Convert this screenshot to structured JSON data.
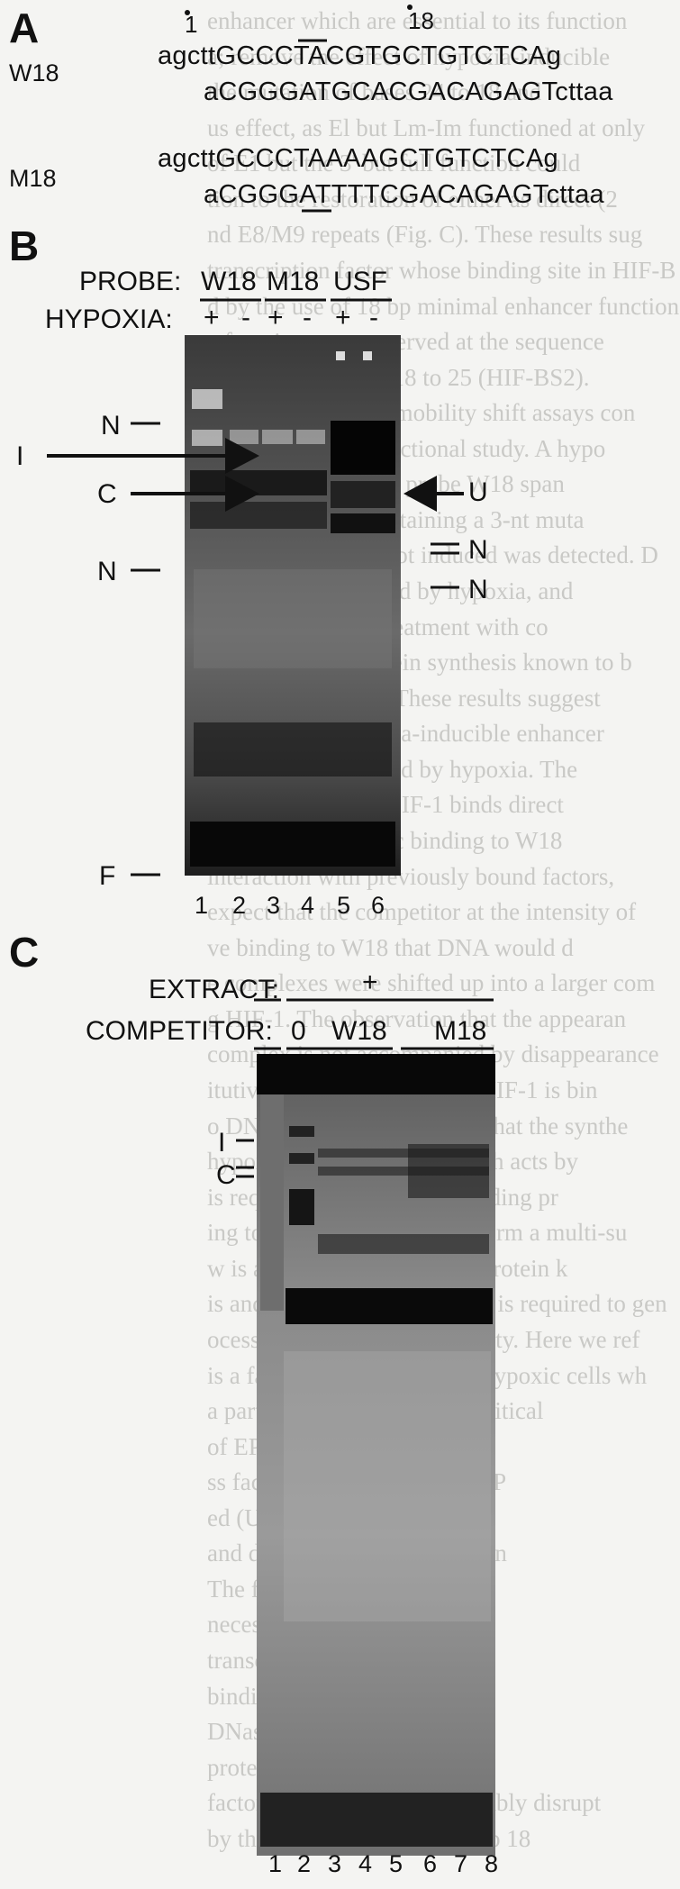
{
  "panelA": {
    "letter": "A",
    "marker_1": "1",
    "marker_18": "18",
    "probes": [
      {
        "name": "W18",
        "top_strand": "agcttGCCCTACGTGCTGTCTCAg",
        "bottom_strand": "aCGGGATGCACGACAGAGTcttaa"
      },
      {
        "name": "M18",
        "top_strand": "agcttGCCCTAAAAGCTGTCTCAg",
        "bottom_strand": "aCGGGATTTTCGACAGAGTcttaa"
      }
    ]
  },
  "panelB": {
    "letter": "B",
    "probe_label": "PROBE:",
    "probes": [
      "W18",
      "M18",
      "USF"
    ],
    "hypoxia_label": "HYPOXIA:",
    "hypoxia": [
      "+",
      "-",
      "+",
      "-",
      "+",
      "-"
    ],
    "left_labels": {
      "n_top": "N",
      "i": "I",
      "c": "C",
      "n_mid": "N",
      "f": "F"
    },
    "right_labels": {
      "u": "U",
      "n1": "N",
      "n2": "N"
    },
    "lanes": [
      "1",
      "2",
      "3",
      "4",
      "5",
      "6"
    ]
  },
  "panelC": {
    "letter": "C",
    "extract_label": "EXTRACT:",
    "extract_minus": "-",
    "extract_plus": "+",
    "competitor_label": "COMPETITOR:",
    "competitors": [
      "0",
      "W18",
      "M18"
    ],
    "left_labels": {
      "i": "I",
      "c": "C"
    },
    "lanes": [
      "1",
      "2",
      "3",
      "4",
      "5",
      "6",
      "7",
      "8"
    ]
  },
  "background_text": [
    "enhancer which are essential to its function",
    "a; remove the effect of hypoxia-inducible",
    "the mutation of bases 24 to 18 and",
    "us effect, as El but Lm-Im functioned at only",
    "of E1 but the 3' but full function could",
    "tion to the restoration of either as direct (2",
    "nd E8/M9 repeats (Fig. C). These results sug",
    "transcription factor whose binding site in HIF-B",
    "d by the use of 18 bp minimal enhancer function",
    "e function was preserved at the sequence",
    "(HIF-BS) residues 18 to 25 (HIF-BS2).",
    "btained from these mobility shift assays con",
    "he results of the functional study. A hypo",
    "d was detected with probe W18 span",
    "but not to M18, containing a 3-nt muta",
    "complex that was not induced was detected. D",
    "ctivity was increased by hypoxia, and",
    "was inducible by treatment with co",
    "an inhibitor of protein synthesis known to b",
    "of EPO RNA (10). These results suggest",
    "HIF-1 to the hypoxia-inducible enhancer",
    "transcription induced by hypoxia. The",
    "here do not prove HIF-1 binds direct",
    "However, if specific binding to W18",
    "interaction with previously bound factors,",
    "expect that the competitor at the intensity of",
    "ve binding to W18 that DNA would d",
    "e complexes were shifted up into a larger com",
    "g HIF-1. The observation that the appearan",
    "complex is not accompanied by disappearance",
    "itutive factors suggests that HIF-1 is bin",
    "o DNA. The results indicate that the synthe",
    "hypoxia-induced factor, which acts by",
    "is required for (i) a DNA-binding pr",
    "ing to other proteins and to form a multi-su",
    "w is a requirement for (ii) a protein k",
    "is and (iii) that new synthesis is required to gen",
    "ocess for DNA-binding activity. Here we ref",
    "is a factor that is induced in hypoxic cells wh",
    "a particular DNA sequence critical",
    "of EPO gene transcription.",
    "ss factors which bind when EP",
    "ed (USF) is used as a probe",
    "and detected any HIF-BS2 con",
    "The factor binding at",
    "necessary for the for",
    "transcription complex",
    "binding conditions in",
    "DNase I footprinting a",
    "protection over nt 26 to",
    "factor whose binding is probably disrupt",
    "by the mutation of bases 24 to 18"
  ]
}
